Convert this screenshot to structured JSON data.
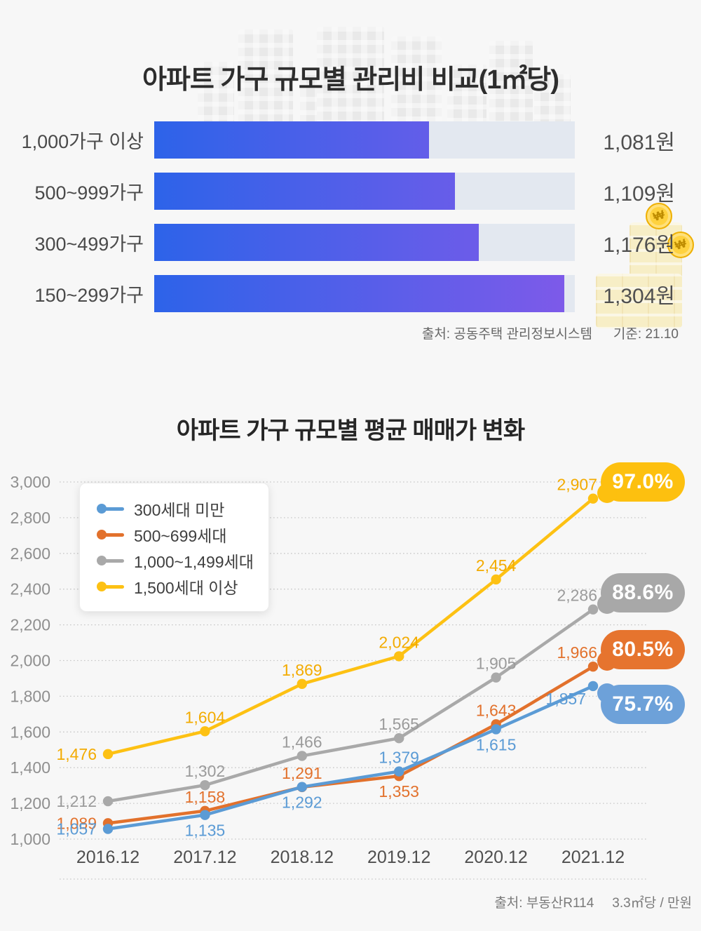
{
  "page_bg": "#f7f7f7",
  "decor": {
    "coin_symbol": "₩"
  },
  "fee_chart": {
    "title": "아파트 가구 규모별 관리비 비교(1㎡당)",
    "source_label": "출처: 공동주택 관리정보시스템",
    "basis_label": "기준: 21.10"
  },
  "price_chart": {
    "title": "아파트 가구 규모별 평균 매매가 변화",
    "source_label": "출처: 부동산R114",
    "unit_label": "3.3㎡당 / 만원"
  },
  "chart_data": [
    {
      "type": "bar",
      "orientation": "horizontal",
      "title": "아파트 가구 규모별 관리비 비교(1㎡당)",
      "categories": [
        "1,000가구 이상",
        "500~999가구",
        "300~499가구",
        "150~299가구"
      ],
      "values": [
        1081,
        1109,
        1176,
        1304
      ],
      "value_suffix": "원",
      "fill_pct": [
        65.3,
        71.5,
        77.1,
        97.5
      ],
      "track_color": "#e3e8f0",
      "bar_gradient": [
        "#2d63e9",
        "#7f5ae9"
      ]
    },
    {
      "type": "line",
      "title": "아파트 가구 규모별 평균 매매가 변화",
      "x": [
        "2016.12",
        "2017.12",
        "2018.12",
        "2019.12",
        "2020.12",
        "2021.12"
      ],
      "ylim": [
        1000,
        3000
      ],
      "ytick_step": 200,
      "grid": "dotted-horizontal",
      "legend_position": "top-left",
      "series": [
        {
          "name": "1,000~1,499세대",
          "color": "#a9a9a9",
          "label_color": "#9b9b9b",
          "badge_color": "#a8a8a8",
          "values": [
            1212,
            1302,
            1466,
            1565,
            1905,
            2286
          ],
          "growth_label": "88.6%",
          "badge_anchor": "above",
          "label_pos": [
            "l",
            "a",
            "a",
            "a",
            "a",
            "al"
          ]
        },
        {
          "name": "500~699세대",
          "color": "#e2712c",
          "label_color": "#e2712c",
          "badge_color": "#e6742e",
          "values": [
            1089,
            1158,
            1291,
            1353,
            1643,
            1966
          ],
          "growth_label": "80.5%",
          "badge_anchor": "above",
          "label_pos": [
            "l",
            "a",
            "a",
            "b",
            "a",
            "al"
          ]
        },
        {
          "name": "300세대 미만",
          "color": "#5b9bd5",
          "label_color": "#5b9bd5",
          "badge_color": "#6da1d9",
          "values": [
            1057,
            1135,
            1292,
            1379,
            1615,
            1857
          ],
          "growth_label": "75.7%",
          "badge_anchor": "below",
          "label_pos": [
            "l",
            "b",
            "b",
            "a",
            "b",
            "bl"
          ]
        },
        {
          "name": "1,500세대 이상",
          "color": "#fdc113",
          "label_color": "#f3ab00",
          "badge_color": "#fdc00f",
          "values": [
            1476,
            1604,
            1869,
            2024,
            2454,
            2907
          ],
          "growth_label": "97.0%",
          "badge_anchor": "above",
          "label_pos": [
            "l",
            "a",
            "a",
            "a",
            "a",
            "al"
          ]
        }
      ],
      "legend_order": [
        "300세대 미만",
        "500~699세대",
        "1,000~1,499세대",
        "1,500세대 이상"
      ]
    }
  ]
}
